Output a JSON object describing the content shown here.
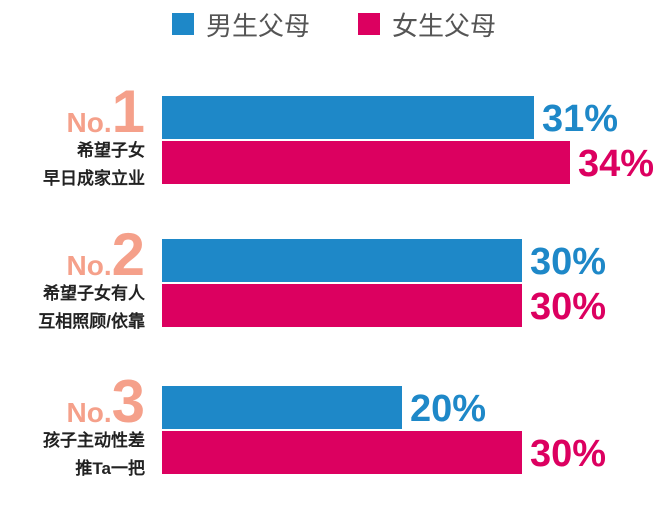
{
  "legend": [
    {
      "name": "男生父母",
      "color": "#1e88c8"
    },
    {
      "name": "女生父母",
      "color": "#dc0060"
    }
  ],
  "chart_data": {
    "type": "bar",
    "orientation": "horizontal",
    "categories": [
      {
        "rank_prefix": "No.",
        "rank_num": "1",
        "lines": [
          "希望子女",
          "早日成家立业"
        ]
      },
      {
        "rank_prefix": "No.",
        "rank_num": "2",
        "lines": [
          "希望子女有人",
          "互相照顾/依靠"
        ]
      },
      {
        "rank_prefix": "No.",
        "rank_num": "3",
        "lines": [
          "孩子主动性差",
          "推Ta一把"
        ]
      }
    ],
    "series": [
      {
        "name": "男生父母",
        "color": "#1e88c8",
        "values": [
          31,
          30,
          20
        ],
        "labels": [
          "31%",
          "30%",
          "20%"
        ]
      },
      {
        "name": "女生父母",
        "color": "#dc0060",
        "values": [
          34,
          30,
          30
        ],
        "labels": [
          "34%",
          "30%",
          "30%"
        ]
      }
    ],
    "xlim": [
      0,
      34
    ],
    "grid": false,
    "legend_position": "top"
  }
}
